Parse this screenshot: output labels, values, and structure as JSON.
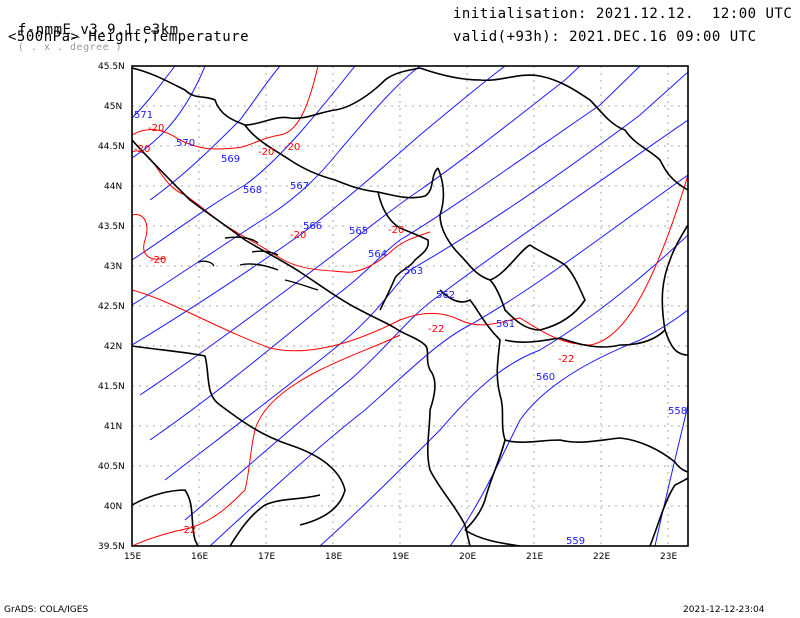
{
  "header": {
    "model": "f-nmmE_v3.9.1-e3km",
    "units": "( . x . degree )",
    "level": "<500hPa> Height,Temperature",
    "init": "initialisation: 2021.12.12.  12:00 UTC",
    "valid": "valid(+93h): 2021.DEC.16 09:00 UTC"
  },
  "footer": {
    "left": "GrADS: COLA/IGES",
    "right": "2021-12-12-23:04"
  },
  "axes": {
    "x_ticks": [
      "15E",
      "16E",
      "17E",
      "18E",
      "19E",
      "20E",
      "21E",
      "22E",
      "23E"
    ],
    "y_ticks": [
      "45.5N",
      "45N",
      "44.5N",
      "44N",
      "43.5N",
      "43N",
      "42.5N",
      "42N",
      "41.5N",
      "41N",
      "40.5N",
      "40N",
      "39.5N"
    ],
    "lon_range": [
      15,
      23.3
    ],
    "lat_range": [
      39.5,
      45.5
    ]
  },
  "height_labels": [
    "571",
    "570",
    "569",
    "568",
    "567",
    "566",
    "565",
    "564",
    "563",
    "562",
    "561",
    "560",
    "559",
    "558"
  ],
  "temp_labels": [
    "-20",
    "-20",
    "-20",
    "-20",
    "-20",
    "-20",
    "-20",
    "-22",
    "-22",
    "-22"
  ],
  "colors": {
    "height": "#1a1aff",
    "temperature": "#ff0000",
    "coast": "#000000",
    "grid": "#999999"
  }
}
